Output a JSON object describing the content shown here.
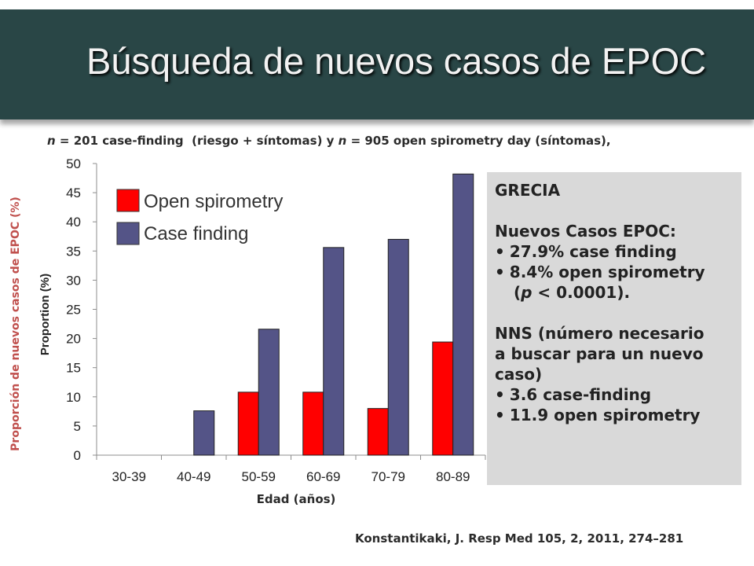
{
  "slide": {
    "title": "Búsqueda de nuevos casos de EPOC",
    "subtitle": {
      "n1_var": "n",
      "n1_text": " = 201 case-finding  (riesgo + síntomas) y ",
      "n2_var": "n",
      "n2_text": " = 905 open spirometry day (síntomas),"
    },
    "citation": "Konstantikaki, J. Resp Med 105, 2, 2011, 274–281"
  },
  "info_box": {
    "heading": "GRECIA",
    "label": "Nuevos Casos EPOC:",
    "items": [
      "27.9% case finding",
      "8.4% open spirometry"
    ],
    "p_prefix": "(",
    "p_var": "p",
    "p_text": " < 0.0001).",
    "nns_line1": "NNS (número necesario",
    "nns_line2": "a buscar para un nuevo",
    "nns_line3": "caso)",
    "nns_items": [
      "3.6 case-finding",
      "11.9 open spirometry"
    ]
  },
  "colors": {
    "banner": "#294646",
    "open_spirometry": "#ff0000",
    "case_finding": "#545487"
  },
  "chart_data": {
    "type": "bar",
    "categories": [
      "30-39",
      "40-49",
      "50-59",
      "60-69",
      "70-79",
      "80-89"
    ],
    "series": [
      {
        "name": "Open spirometry",
        "values": [
          0,
          0,
          10.8,
          10.8,
          8.0,
          19.4
        ]
      },
      {
        "name": "Case finding",
        "values": [
          0,
          7.6,
          21.6,
          35.6,
          37.0,
          48.2
        ]
      }
    ],
    "xlabel": "Edad (años)",
    "ylabel_outer": "Proporción de nuevos casos de EPOC  (%)",
    "ylabel_inner": "Proportion (%)",
    "ylim": [
      0,
      50
    ],
    "yticks": [
      0,
      5,
      10,
      15,
      20,
      25,
      30,
      35,
      40,
      45,
      50
    ],
    "grid": false,
    "legend_placement": "top-left"
  }
}
